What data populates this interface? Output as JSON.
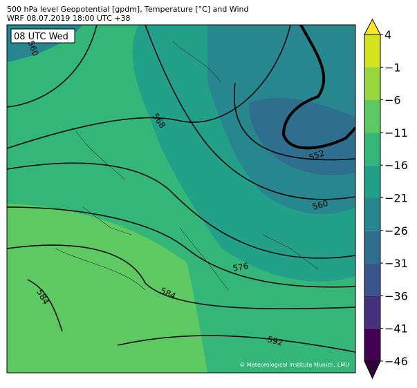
{
  "header": {
    "title": "500 hPa level Geopotential [gpdm], Temperature [°C] and Wind",
    "subtitle": "WRF 08.07.2019 18:00 UTC +38"
  },
  "map": {
    "time_label": "08 UTC Wed",
    "contour_labels": [
      560,
      568,
      552,
      560,
      576,
      584,
      584,
      592
    ],
    "credit": "© Meteorological Institute Munich, LMU"
  },
  "colorbar": {
    "lim": [
      -46,
      4
    ],
    "ticks": [
      4,
      {
        "value": -1,
        "label": "−1"
      },
      {
        "value": -6,
        "label": "−6"
      },
      {
        "value": -11,
        "label": "−11"
      },
      {
        "value": -16,
        "label": "−16"
      },
      {
        "value": -21,
        "label": "−21"
      },
      {
        "value": -26,
        "label": "−26"
      },
      {
        "value": -31,
        "label": "−31"
      },
      {
        "value": -36,
        "label": "−36"
      },
      {
        "value": -41,
        "label": "−41"
      },
      {
        "value": -46,
        "label": "−46"
      }
    ],
    "colors": [
      "#440154",
      "#46317e",
      "#3a548c",
      "#2f6e8e",
      "#27868e",
      "#23a08a",
      "#34b679",
      "#5ec962",
      "#98d83e",
      "#d2e21b"
    ],
    "over_color": "#fde725",
    "under_color": "#30003e"
  }
}
